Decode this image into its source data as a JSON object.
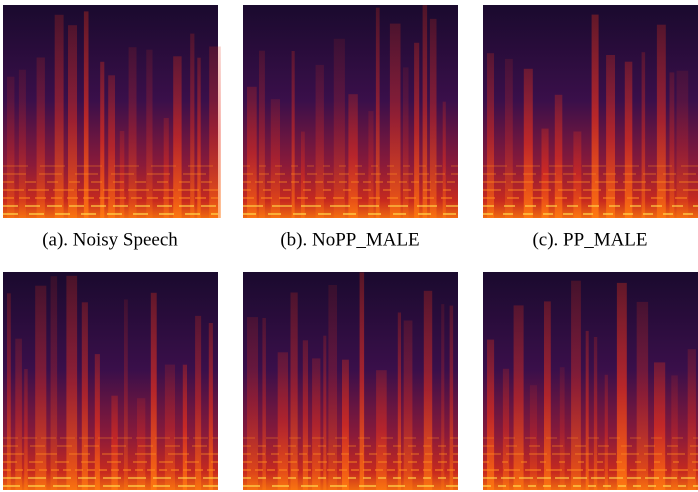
{
  "captions": [
    "(a). Noisy Speech",
    "(b). NoPP_MALE",
    "(c). PP_MALE"
  ]
}
